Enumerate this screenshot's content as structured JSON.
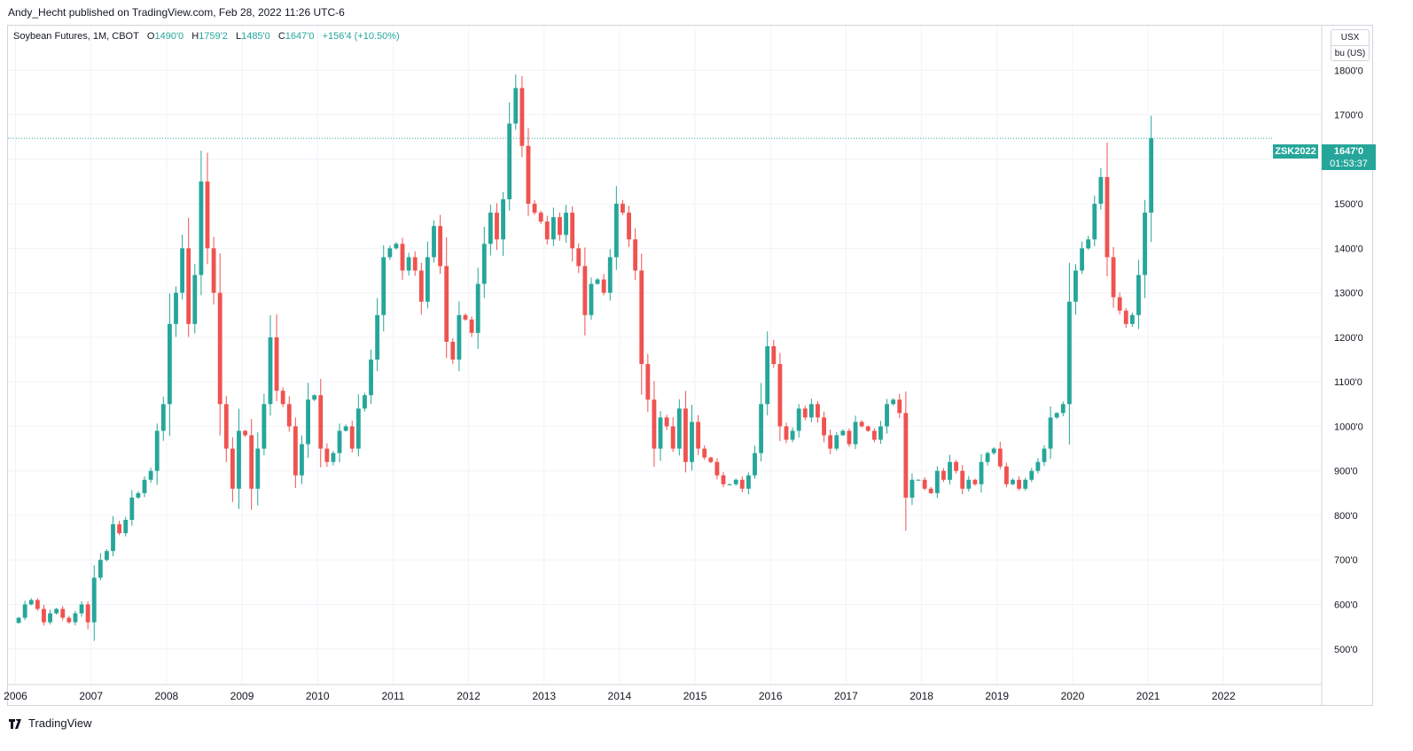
{
  "header": {
    "published_by": "Andy_Hecht published on TradingView.com, Feb 28, 2022 11:26 UTC-6"
  },
  "legend": {
    "symbol": "Soybean Futures, 1M, CBOT",
    "open_label": "O",
    "open": "1490'0",
    "high_label": "H",
    "high": "1759'2",
    "low_label": "L",
    "low": "1485'0",
    "close_label": "C",
    "close": "1647'0",
    "change": "+156'4 (+10.50%)"
  },
  "units": {
    "currency": "USX",
    "unit": "bu (US)"
  },
  "last_price": {
    "symbol": "ZSK2022",
    "price": "1647'0",
    "countdown": "01:53:37",
    "value": 1647
  },
  "footer": {
    "brand": "TradingView"
  },
  "colors": {
    "up": "#26a69a",
    "down": "#ef5350",
    "grid": "#f0f3fa",
    "border": "#d1d4dc"
  },
  "chart_data": {
    "type": "candlestick",
    "interval": "1M",
    "x_range": [
      2005.9,
      2023.3
    ],
    "y_range": [
      420,
      1900
    ],
    "y_ticks": [
      {
        "value": 500,
        "label": "500'0"
      },
      {
        "value": 600,
        "label": "600'0"
      },
      {
        "value": 700,
        "label": "700'0"
      },
      {
        "value": 800,
        "label": "800'0"
      },
      {
        "value": 900,
        "label": "900'0"
      },
      {
        "value": 1000,
        "label": "1000'0"
      },
      {
        "value": 1100,
        "label": "1100'0"
      },
      {
        "value": 1200,
        "label": "1200'0"
      },
      {
        "value": 1300,
        "label": "1300'0"
      },
      {
        "value": 1400,
        "label": "1400'0"
      },
      {
        "value": 1500,
        "label": "1500'0"
      },
      {
        "value": 1600,
        "label": "1600'0"
      },
      {
        "value": 1700,
        "label": "1700'0"
      },
      {
        "value": 1800,
        "label": "1800'0"
      }
    ],
    "x_ticks": [
      "2006",
      "2007",
      "2008",
      "2009",
      "2010",
      "2011",
      "2012",
      "2013",
      "2014",
      "2015",
      "2016",
      "2017",
      "2018",
      "2019",
      "2020",
      "2021",
      "2022"
    ],
    "grid": true,
    "start": "2006-01",
    "closes": [
      570,
      600,
      610,
      590,
      560,
      580,
      590,
      570,
      560,
      580,
      600,
      560,
      660,
      700,
      720,
      780,
      760,
      790,
      840,
      850,
      880,
      900,
      990,
      1050,
      1230,
      1300,
      1400,
      1230,
      1340,
      1550,
      1400,
      1300,
      1050,
      950,
      860,
      990,
      980,
      860,
      950,
      1050,
      1200,
      1080,
      1050,
      1000,
      890,
      960,
      1060,
      1070,
      950,
      920,
      940,
      990,
      1000,
      950,
      1040,
      1070,
      1150,
      1250,
      1380,
      1400,
      1410,
      1350,
      1380,
      1350,
      1280,
      1380,
      1450,
      1360,
      1190,
      1150,
      1250,
      1240,
      1210,
      1320,
      1410,
      1480,
      1420,
      1510,
      1680,
      1760,
      1630,
      1500,
      1480,
      1460,
      1420,
      1470,
      1430,
      1480,
      1400,
      1360,
      1250,
      1320,
      1330,
      1300,
      1380,
      1500,
      1480,
      1420,
      1350,
      1140,
      1060,
      950,
      1020,
      1000,
      950,
      1040,
      920,
      1010,
      950,
      930,
      920,
      890,
      870,
      870,
      880,
      860,
      890,
      940,
      1050,
      1180,
      1140,
      1000,
      970,
      990,
      1040,
      1020,
      1050,
      1020,
      980,
      950,
      980,
      990,
      960,
      1010,
      1000,
      990,
      970,
      1000,
      1050,
      1060,
      1030,
      840,
      880,
      880,
      860,
      850,
      900,
      880,
      920,
      900,
      860,
      880,
      870,
      920,
      940,
      950,
      910,
      870,
      880,
      860,
      880,
      900,
      920,
      950,
      1020,
      1030,
      1050,
      1280,
      1350,
      1400,
      1420,
      1500,
      1560,
      1380,
      1290,
      1260,
      1230,
      1250,
      1340,
      1480,
      1647
    ]
  }
}
